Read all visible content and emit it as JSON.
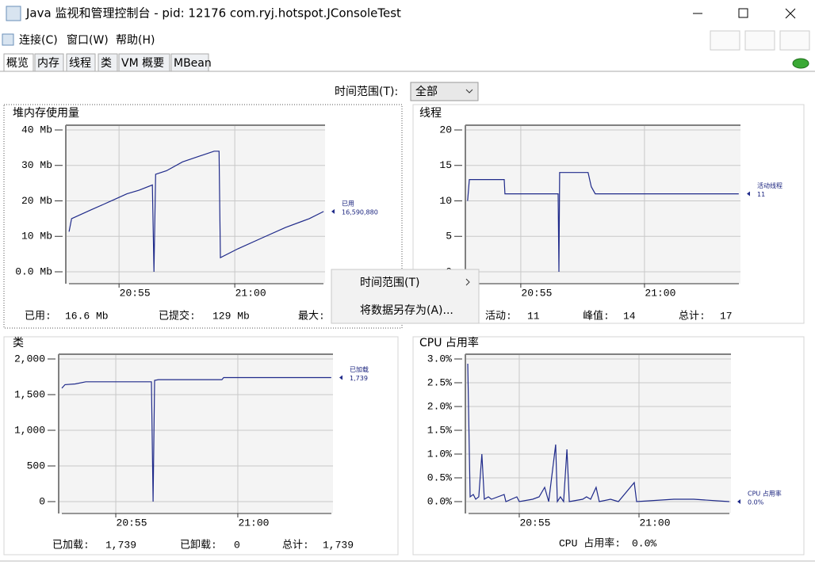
{
  "window": {
    "title": "Java 监视和管理控制台 - pid: 12176 com.ryj.hotspot.JConsoleTest",
    "menu": [
      "连接(C)",
      "窗口(W)",
      "帮助(H)"
    ],
    "tabs": [
      "概览",
      "内存",
      "线程",
      "类",
      "VM 概要",
      "MBean"
    ],
    "time_range_label": "时间范围(T):",
    "time_range_value": "全部"
  },
  "chart_data": [
    {
      "type": "line",
      "title": "堆内存使用量",
      "x": [
        52.84,
        52.95,
        53.29,
        53.8,
        54.32,
        54.83,
        55.34,
        55.86,
        56.44,
        56.51,
        56.58,
        57.05,
        57.74,
        58.42,
        59.11,
        59.32,
        59.38,
        60.14,
        61.16,
        62.19,
        63.22,
        63.84
      ],
      "series": [
        {
          "name": "已用",
          "color": "#1f2a8a",
          "values": [
            11.3,
            15,
            16,
            17.5,
            19,
            20.5,
            22,
            23,
            24.5,
            0,
            27.5,
            28.5,
            31,
            32.5,
            34,
            34,
            4,
            6.5,
            9.5,
            12.5,
            15,
            17
          ]
        }
      ],
      "legend_value": "16,590,880",
      "xlim": [
        52.7,
        63.9
      ],
      "xticks": [
        {
          "value": 55,
          "label": "20:55"
        },
        {
          "value": 60,
          "label": "21:00"
        }
      ],
      "ylim": [
        0,
        40
      ],
      "yticks": [
        {
          "value": 0,
          "label": "0.0 Mb"
        },
        {
          "value": 10,
          "label": "10 Mb"
        },
        {
          "value": 20,
          "label": "20 Mb"
        },
        {
          "value": 30,
          "label": "30 Mb"
        },
        {
          "value": 40,
          "label": "40 Mb"
        }
      ],
      "grid": true,
      "stats": [
        {
          "label": "已用:",
          "value": "16.6 Mb"
        },
        {
          "label": "已提交:",
          "value": "129 Mb"
        },
        {
          "label": "最大:"
        }
      ]
    },
    {
      "type": "line",
      "title": "线程",
      "x": [
        52.85,
        52.92,
        54.33,
        54.36,
        56.51,
        56.54,
        56.57,
        57.72,
        57.85,
        58.01,
        63.81
      ],
      "series": [
        {
          "name": "活动线程",
          "color": "#1f2a8a",
          "values": [
            10,
            13,
            13,
            11,
            11,
            0,
            14,
            14,
            12,
            11,
            11
          ]
        }
      ],
      "legend_value": "11",
      "xlim": [
        52.76,
        63.88
      ],
      "xticks": [
        {
          "value": 55,
          "label": "20:55"
        },
        {
          "value": 60,
          "label": "21:00"
        }
      ],
      "ylim": [
        0,
        20
      ],
      "yticks": [
        0,
        5,
        10,
        15,
        20
      ],
      "grid": true,
      "stats": [
        {
          "label": "活动:",
          "value": "11"
        },
        {
          "label": "峰值:",
          "value": "14"
        },
        {
          "label": "总计:",
          "value": "17"
        }
      ]
    },
    {
      "type": "line",
      "title": "类",
      "x": [
        52.79,
        52.92,
        53.34,
        53.77,
        56.46,
        56.53,
        56.59,
        56.75,
        59.35,
        59.42,
        63.83
      ],
      "series": [
        {
          "name": "已加载",
          "color": "#1f2a8a",
          "values": [
            1590,
            1640,
            1650,
            1680,
            1680,
            0,
            1700,
            1710,
            1710,
            1739,
            1739
          ]
        }
      ],
      "legend_value": "1,739",
      "xlim": [
        52.66,
        63.9
      ],
      "xticks": [
        {
          "value": 55,
          "label": "20:55"
        },
        {
          "value": 60,
          "label": "21:00"
        }
      ],
      "ylim": [
        0,
        2000
      ],
      "yticks": [
        0,
        500,
        {
          "value": 1000,
          "label": "1,000"
        },
        {
          "value": 1500,
          "label": "1,500"
        },
        {
          "value": 2000,
          "label": "2,000"
        }
      ],
      "grid": true,
      "stats": [
        {
          "label": "已加载:",
          "value": "1,739"
        },
        {
          "label": "已卸载:",
          "value": "0"
        },
        {
          "label": "总计:",
          "value": "1,739"
        }
      ]
    },
    {
      "type": "line",
      "title": "CPU 占用率",
      "x": [
        52.85,
        52.95,
        53.08,
        53.18,
        53.31,
        53.44,
        53.54,
        53.71,
        53.84,
        54.37,
        54.44,
        54.9,
        55.0,
        55.56,
        55.83,
        56.06,
        56.23,
        56.52,
        56.59,
        56.72,
        56.85,
        56.99,
        57.09,
        57.65,
        57.81,
        57.98,
        58.21,
        58.34,
        58.81,
        59.14,
        59.8,
        59.9,
        61.46,
        61.95,
        62.28,
        63.77
      ],
      "series": [
        {
          "name": "CPU 占用率",
          "color": "#1f2a8a",
          "values": [
            2.9,
            0.1,
            0.15,
            0.05,
            0.1,
            1.0,
            0.05,
            0.1,
            0.05,
            0.15,
            0,
            0.1,
            0,
            0.05,
            0.1,
            0.3,
            0,
            1.2,
            0,
            0.1,
            0,
            1.1,
            0,
            0.05,
            0.1,
            0.05,
            0.3,
            0,
            0.05,
            0,
            0.4,
            0,
            0.05,
            0.05,
            0.05,
            0
          ]
        }
      ],
      "legend_value": "0.0%",
      "xlim": [
        52.75,
        63.84
      ],
      "xticks": [
        {
          "value": 55,
          "label": "20:55"
        },
        {
          "value": 60,
          "label": "21:00"
        }
      ],
      "ylim": [
        0,
        3
      ],
      "yticks": [
        {
          "value": 0,
          "label": "0.0%"
        },
        {
          "value": 0.5,
          "label": "0.5%"
        },
        {
          "value": 1,
          "label": "1.0%"
        },
        {
          "value": 1.5,
          "label": "1.5%"
        },
        {
          "value": 2,
          "label": "2.0%"
        },
        {
          "value": 2.5,
          "label": "2.5%"
        },
        {
          "value": 3,
          "label": "3.0%"
        }
      ],
      "grid": true,
      "stats": [
        {
          "label": "CPU 占用率:",
          "value": "0.0%"
        }
      ]
    }
  ],
  "context_menu": [
    "时间范围(T)",
    "将数据另存为(A)..."
  ]
}
